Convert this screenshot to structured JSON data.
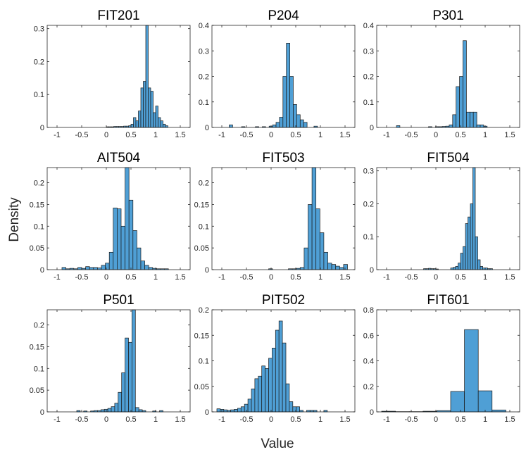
{
  "figure": {
    "xlabel": "Value",
    "ylabel": "Density"
  },
  "colors": {
    "bar_fill": "#4f9fd5",
    "bar_edge": "#1a1a1a",
    "axis": "#262626"
  },
  "chart_data": [
    {
      "type": "bar",
      "title": "FIT201",
      "xlim": [
        -1.2,
        1.7
      ],
      "ylim": [
        0,
        0.31
      ],
      "xticks": [
        -1,
        -0.5,
        0,
        0.5,
        1,
        1.5
      ],
      "xtick_labels": [
        "-1",
        "-0.5",
        "0",
        "0.5",
        "1",
        "1.5"
      ],
      "yticks": [
        0,
        0.1,
        0.2,
        0.3
      ],
      "ytick_labels": [
        "0",
        "0.1",
        "0.2",
        "0.3"
      ],
      "bins": [
        [
          0.0,
          0.05,
          0.002
        ],
        [
          0.05,
          0.1,
          0.002
        ],
        [
          0.1,
          0.15,
          0.002
        ],
        [
          0.15,
          0.2,
          0.003
        ],
        [
          0.2,
          0.25,
          0.003
        ],
        [
          0.25,
          0.3,
          0.003
        ],
        [
          0.3,
          0.35,
          0.003
        ],
        [
          0.35,
          0.4,
          0.004
        ],
        [
          0.4,
          0.45,
          0.004
        ],
        [
          0.45,
          0.5,
          0.005
        ],
        [
          0.5,
          0.55,
          0.01
        ],
        [
          0.55,
          0.6,
          0.03
        ],
        [
          0.6,
          0.65,
          0.02
        ],
        [
          0.65,
          0.7,
          0.05
        ],
        [
          0.7,
          0.75,
          0.12
        ],
        [
          0.75,
          0.8,
          0.14
        ],
        [
          0.8,
          0.85,
          0.31
        ],
        [
          0.85,
          0.9,
          0.12
        ],
        [
          0.9,
          0.95,
          0.11
        ],
        [
          0.95,
          1.0,
          0.045
        ],
        [
          1.0,
          1.05,
          0.065
        ],
        [
          1.05,
          1.1,
          0.03
        ],
        [
          1.1,
          1.15,
          0.02
        ],
        [
          1.15,
          1.2,
          0.01
        ],
        [
          1.2,
          1.25,
          0.005
        ]
      ]
    },
    {
      "type": "bar",
      "title": "P204",
      "xlim": [
        -1.2,
        1.7
      ],
      "ylim": [
        0,
        0.4
      ],
      "xticks": [
        -1,
        -0.5,
        0,
        0.5,
        1,
        1.5
      ],
      "xtick_labels": [
        "-1",
        "-0.5",
        "0",
        "0.5",
        "1",
        "1.5"
      ],
      "yticks": [
        0,
        0.1,
        0.2,
        0.3,
        0.4
      ],
      "ytick_labels": [
        "0",
        "0.1",
        "0.2",
        "0.3",
        "0.4"
      ],
      "bins": [
        [
          -0.85,
          -0.78,
          0.01
        ],
        [
          -0.6,
          -0.53,
          0.003
        ],
        [
          -0.32,
          -0.25,
          0.003
        ],
        [
          -0.18,
          -0.11,
          0.003
        ],
        [
          -0.04,
          0.03,
          0.005
        ],
        [
          0.03,
          0.1,
          0.01
        ],
        [
          0.1,
          0.17,
          0.02
        ],
        [
          0.17,
          0.24,
          0.04
        ],
        [
          0.24,
          0.31,
          0.2
        ],
        [
          0.31,
          0.38,
          0.33
        ],
        [
          0.38,
          0.45,
          0.2
        ],
        [
          0.45,
          0.52,
          0.09
        ],
        [
          0.52,
          0.59,
          0.05
        ],
        [
          0.59,
          0.66,
          0.03
        ],
        [
          0.66,
          0.73,
          0.02
        ],
        [
          0.87,
          0.94,
          0.005
        ]
      ]
    },
    {
      "type": "bar",
      "title": "P301",
      "xlim": [
        -1.2,
        1.7
      ],
      "ylim": [
        0,
        0.4
      ],
      "xticks": [
        -1,
        -0.5,
        0,
        0.5,
        1,
        1.5
      ],
      "xtick_labels": [
        "-1",
        "-0.5",
        "0",
        "0.5",
        "1",
        "1.5"
      ],
      "yticks": [
        0,
        0.1,
        0.2,
        0.3,
        0.4
      ],
      "ytick_labels": [
        "0",
        "0.1",
        "0.2",
        "0.3",
        "0.4"
      ],
      "bins": [
        [
          -0.8,
          -0.73,
          0.007
        ],
        [
          -0.15,
          -0.08,
          0.003
        ],
        [
          -0.01,
          0.06,
          0.003
        ],
        [
          0.06,
          0.13,
          0.003
        ],
        [
          0.13,
          0.2,
          0.004
        ],
        [
          0.2,
          0.27,
          0.005
        ],
        [
          0.27,
          0.34,
          0.01
        ],
        [
          0.34,
          0.41,
          0.05
        ],
        [
          0.41,
          0.48,
          0.16
        ],
        [
          0.48,
          0.55,
          0.2
        ],
        [
          0.55,
          0.62,
          0.34
        ],
        [
          0.62,
          0.69,
          0.06
        ],
        [
          0.69,
          0.76,
          0.06
        ],
        [
          0.76,
          0.83,
          0.06
        ],
        [
          0.83,
          0.9,
          0.01
        ],
        [
          0.9,
          0.97,
          0.01
        ],
        [
          0.97,
          1.04,
          0.005
        ]
      ]
    },
    {
      "type": "bar",
      "title": "AIT504",
      "xlim": [
        -1.2,
        1.7
      ],
      "ylim": [
        0,
        0.235
      ],
      "xticks": [
        -1,
        -0.5,
        0,
        0.5,
        1,
        1.5
      ],
      "xtick_labels": [
        "-1",
        "-0.5",
        "0",
        "0.5",
        "1",
        "1.5"
      ],
      "yticks": [
        0,
        0.05,
        0.1,
        0.15,
        0.2
      ],
      "ytick_labels": [
        "0",
        "0.05",
        "0.1",
        "0.15",
        "0.2"
      ],
      "bins": [
        [
          -0.9,
          -0.82,
          0.005
        ],
        [
          -0.82,
          -0.74,
          0.002
        ],
        [
          -0.74,
          -0.66,
          0.003
        ],
        [
          -0.66,
          -0.58,
          0.002
        ],
        [
          -0.58,
          -0.5,
          0.005
        ],
        [
          -0.5,
          -0.42,
          0.003
        ],
        [
          -0.42,
          -0.34,
          0.007
        ],
        [
          -0.34,
          -0.26,
          0.005
        ],
        [
          -0.26,
          -0.18,
          0.005
        ],
        [
          -0.18,
          -0.1,
          0.004
        ],
        [
          -0.1,
          -0.02,
          0.01
        ],
        [
          -0.02,
          0.06,
          0.015
        ],
        [
          0.06,
          0.14,
          0.04
        ],
        [
          0.14,
          0.22,
          0.142
        ],
        [
          0.22,
          0.3,
          0.14
        ],
        [
          0.3,
          0.38,
          0.1
        ],
        [
          0.38,
          0.46,
          0.235
        ],
        [
          0.46,
          0.54,
          0.16
        ],
        [
          0.54,
          0.62,
          0.09
        ],
        [
          0.62,
          0.7,
          0.05
        ],
        [
          0.7,
          0.78,
          0.02
        ],
        [
          0.78,
          0.86,
          0.01
        ],
        [
          0.86,
          0.94,
          0.005
        ],
        [
          0.94,
          1.02,
          0.003
        ],
        [
          1.02,
          1.1,
          0.002
        ],
        [
          1.1,
          1.18,
          0.002
        ],
        [
          1.18,
          1.26,
          0.002
        ]
      ]
    },
    {
      "type": "bar",
      "title": "FIT503",
      "xlim": [
        -1.2,
        1.7
      ],
      "ylim": [
        0,
        0.235
      ],
      "xticks": [
        -1,
        -0.5,
        0,
        0.5,
        1,
        1.5
      ],
      "xtick_labels": [
        "-1",
        "-0.5",
        "0",
        "0.5",
        "1",
        "1.5"
      ],
      "yticks": [
        0,
        0.05,
        0.1,
        0.15,
        0.2
      ],
      "ytick_labels": [
        "0",
        "0.05",
        "0.1",
        "0.15",
        "0.2"
      ],
      "bins": [
        [
          -0.05,
          0.03,
          0.002
        ],
        [
          0.35,
          0.43,
          0.002
        ],
        [
          0.43,
          0.51,
          0.002
        ],
        [
          0.51,
          0.59,
          0.003
        ],
        [
          0.59,
          0.67,
          0.005
        ],
        [
          0.67,
          0.75,
          0.05
        ],
        [
          0.75,
          0.83,
          0.15
        ],
        [
          0.83,
          0.91,
          0.235
        ],
        [
          0.91,
          0.99,
          0.14
        ],
        [
          0.99,
          1.07,
          0.085
        ],
        [
          1.07,
          1.15,
          0.04
        ],
        [
          1.15,
          1.23,
          0.015
        ],
        [
          1.23,
          1.31,
          0.012
        ],
        [
          1.31,
          1.39,
          0.008
        ],
        [
          1.39,
          1.47,
          0.005
        ],
        [
          1.47,
          1.55,
          0.012
        ]
      ]
    },
    {
      "type": "bar",
      "title": "FIT504",
      "xlim": [
        -1.2,
        1.7
      ],
      "ylim": [
        0,
        0.31
      ],
      "xticks": [
        -1,
        -0.5,
        0,
        0.5,
        1,
        1.5
      ],
      "xtick_labels": [
        "-1",
        "-0.5",
        "0",
        "0.5",
        "1",
        "1.5"
      ],
      "yticks": [
        0,
        0.1,
        0.2,
        0.3
      ],
      "ytick_labels": [
        "0",
        "0.1",
        "0.2",
        "0.3"
      ],
      "bins": [
        [
          -0.25,
          -0.2,
          0.003
        ],
        [
          -0.2,
          -0.15,
          0.003
        ],
        [
          -0.15,
          -0.1,
          0.004
        ],
        [
          -0.1,
          -0.05,
          0.003
        ],
        [
          -0.05,
          0.0,
          0.003
        ],
        [
          0.0,
          0.05,
          0.002
        ],
        [
          0.3,
          0.35,
          0.005
        ],
        [
          0.35,
          0.4,
          0.007
        ],
        [
          0.4,
          0.45,
          0.01
        ],
        [
          0.45,
          0.5,
          0.02
        ],
        [
          0.5,
          0.55,
          0.05
        ],
        [
          0.55,
          0.6,
          0.07
        ],
        [
          0.6,
          0.65,
          0.14
        ],
        [
          0.65,
          0.7,
          0.16
        ],
        [
          0.7,
          0.75,
          0.2
        ],
        [
          0.75,
          0.8,
          0.31
        ],
        [
          0.8,
          0.85,
          0.1
        ],
        [
          0.85,
          0.9,
          0.03
        ],
        [
          0.9,
          0.95,
          0.01
        ],
        [
          0.95,
          1.0,
          0.005
        ],
        [
          1.0,
          1.05,
          0.005
        ],
        [
          1.05,
          1.1,
          0.003
        ],
        [
          1.1,
          1.15,
          0.003
        ]
      ]
    },
    {
      "type": "bar",
      "title": "P501",
      "xlim": [
        -1.2,
        1.7
      ],
      "ylim": [
        0,
        0.235
      ],
      "xticks": [
        -1,
        -0.5,
        0,
        0.5,
        1,
        1.5
      ],
      "xtick_labels": [
        "-1",
        "-0.5",
        "0",
        "0.5",
        "1",
        "1.5"
      ],
      "yticks": [
        0,
        0.05,
        0.1,
        0.15,
        0.2
      ],
      "ytick_labels": [
        "0",
        "0.05",
        "0.1",
        "0.15",
        "0.2"
      ],
      "bins": [
        [
          -0.6,
          -0.53,
          0.003
        ],
        [
          -0.46,
          -0.39,
          0.002
        ],
        [
          -0.32,
          -0.25,
          0.002
        ],
        [
          -0.25,
          -0.18,
          0.003
        ],
        [
          -0.18,
          -0.11,
          0.003
        ],
        [
          -0.11,
          -0.04,
          0.005
        ],
        [
          -0.04,
          0.03,
          0.006
        ],
        [
          0.03,
          0.1,
          0.008
        ],
        [
          0.1,
          0.17,
          0.012
        ],
        [
          0.17,
          0.24,
          0.02
        ],
        [
          0.24,
          0.31,
          0.045
        ],
        [
          0.31,
          0.38,
          0.09
        ],
        [
          0.38,
          0.45,
          0.17
        ],
        [
          0.45,
          0.52,
          0.16
        ],
        [
          0.52,
          0.59,
          0.235
        ],
        [
          0.59,
          0.66,
          0.01
        ],
        [
          0.66,
          0.73,
          0.005
        ],
        [
          0.73,
          0.8,
          0.003
        ],
        [
          0.94,
          1.01,
          0.002
        ],
        [
          1.08,
          1.15,
          0.003
        ]
      ]
    },
    {
      "type": "bar",
      "title": "PIT502",
      "xlim": [
        -1.2,
        1.7
      ],
      "ylim": [
        0,
        0.2
      ],
      "xticks": [
        -1,
        -0.5,
        0,
        0.5,
        1,
        1.5
      ],
      "xtick_labels": [
        "-1",
        "-0.5",
        "0",
        "0.5",
        "1",
        "1.5"
      ],
      "yticks": [
        0,
        0.05,
        0.1,
        0.15,
        0.2
      ],
      "ytick_labels": [
        "0",
        "0.05",
        "0.1",
        "0.15",
        "0.2"
      ],
      "bins": [
        [
          -1.1,
          -1.03,
          0.006
        ],
        [
          -1.03,
          -0.96,
          0.005
        ],
        [
          -0.96,
          -0.89,
          0.004
        ],
        [
          -0.89,
          -0.82,
          0.003
        ],
        [
          -0.82,
          -0.75,
          0.004
        ],
        [
          -0.75,
          -0.68,
          0.005
        ],
        [
          -0.68,
          -0.61,
          0.007
        ],
        [
          -0.61,
          -0.54,
          0.01
        ],
        [
          -0.54,
          -0.47,
          0.015
        ],
        [
          -0.47,
          -0.4,
          0.025
        ],
        [
          -0.4,
          -0.33,
          0.045
        ],
        [
          -0.33,
          -0.26,
          0.065
        ],
        [
          -0.26,
          -0.19,
          0.07
        ],
        [
          -0.19,
          -0.12,
          0.09
        ],
        [
          -0.12,
          -0.05,
          0.085
        ],
        [
          -0.05,
          0.02,
          0.105
        ],
        [
          0.02,
          0.09,
          0.125
        ],
        [
          0.09,
          0.16,
          0.16
        ],
        [
          0.16,
          0.23,
          0.178
        ],
        [
          0.23,
          0.3,
          0.135
        ],
        [
          0.3,
          0.37,
          0.055
        ],
        [
          0.37,
          0.44,
          0.02
        ],
        [
          0.44,
          0.51,
          0.01
        ],
        [
          0.51,
          0.58,
          0.01
        ],
        [
          0.58,
          0.65,
          0.003
        ],
        [
          0.72,
          0.79,
          0.003
        ],
        [
          0.79,
          0.86,
          0.003
        ],
        [
          0.86,
          0.93,
          0.003
        ],
        [
          1.07,
          1.14,
          0.003
        ]
      ]
    },
    {
      "type": "bar",
      "title": "FIT601",
      "xlim": [
        -1.2,
        1.7
      ],
      "ylim": [
        0,
        0.8
      ],
      "xticks": [
        -1,
        -0.5,
        0,
        0.5,
        1,
        1.5
      ],
      "xtick_labels": [
        "-1",
        "-0.5",
        "0",
        "0.5",
        "1",
        "1.5"
      ],
      "yticks": [
        0,
        0.2,
        0.4,
        0.6,
        0.8
      ],
      "ytick_labels": [
        "0",
        "0.2",
        "0.4",
        "0.6",
        "0.8"
      ],
      "bins": [
        [
          -1.1,
          -0.82,
          0.005
        ],
        [
          -0.82,
          -0.54,
          0.002
        ],
        [
          -0.54,
          -0.26,
          0.002
        ],
        [
          -0.26,
          0.02,
          0.005
        ],
        [
          0.02,
          0.3,
          0.01
        ],
        [
          0.3,
          0.58,
          0.16
        ],
        [
          0.58,
          0.86,
          0.645
        ],
        [
          0.86,
          1.14,
          0.165
        ],
        [
          1.14,
          1.42,
          0.015
        ]
      ]
    }
  ]
}
